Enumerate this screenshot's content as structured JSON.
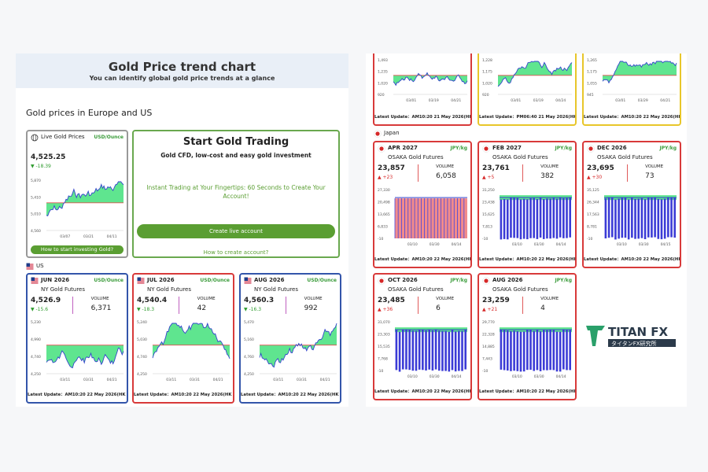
{
  "left": {
    "header": {
      "title": "Gold Price trend chart",
      "subtitle": "You can identify global gold price trends at a glance"
    },
    "section_title": "Gold prices in Europe and US",
    "live": {
      "title": "Live Gold Prices",
      "unit": "USD/Ounce",
      "price": "4,525.25",
      "change": "▼ -18.39",
      "yticks": [
        "5,870",
        "5,410",
        "5,010",
        "4,560"
      ],
      "xticks": [
        "03/07",
        "03/21",
        "04/11"
      ],
      "button": "How to start investing Gold?"
    },
    "promo": {
      "title": "Start Gold Trading",
      "subtitle": "Gold CFD, low-cost and easy gold investment",
      "text": "Instant Trading at Your Fingertips: 60 Seconds to Create Your Account!",
      "button": "Create live account",
      "link": "How to create account?"
    },
    "us_label": "US",
    "us_cards": [
      {
        "contract": "JUN 2026",
        "unit": "USD/Ounce",
        "name": "NY Gold Futures",
        "price": "4,526.9",
        "change": "▼ -15.6",
        "volume_label": "VOLUME",
        "volume": "6,371",
        "yticks": [
          "5,230",
          "4,990",
          "4,740",
          "4,250"
        ],
        "xticks": [
          "03/11",
          "03/31",
          "04/21"
        ],
        "update": "Latest Update：AM10:20 22 May 2026(HK Time)"
      },
      {
        "contract": "JUL 2026",
        "unit": "USD/Ounce",
        "name": "NY Gold Futures",
        "price": "4,540.4",
        "change": "▼ -18.3",
        "volume_label": "VOLUME",
        "volume": "42",
        "yticks": [
          "5,240",
          "5,030",
          "4,740",
          "4,250"
        ],
        "xticks": [
          "03/11",
          "03/31",
          "04/21"
        ],
        "update": "Latest Update：AM10:20 22 May 2026(HK Time)"
      },
      {
        "contract": "AUG 2026",
        "unit": "USD/Ounce",
        "name": "NY Gold Futures",
        "price": "4,560.3",
        "change": "▼ -16.3",
        "volume_label": "VOLUME",
        "volume": "992",
        "yticks": [
          "5,470",
          "5,160",
          "4,760",
          "4,250"
        ],
        "xticks": [
          "03/11",
          "03/31",
          "04/21"
        ],
        "update": "Latest Update：AM10:20 22 May 2026(HK Time)"
      }
    ]
  },
  "right": {
    "top_cards": [
      {
        "yticks": [
          "1,493",
          "1,235",
          "1,020",
          "920"
        ],
        "xticks": [
          "03/01",
          "03/19",
          "04/21"
        ],
        "update": "Latest Update：AM10:20 21 May 2026(HK Time)"
      },
      {
        "yticks": [
          "1,228",
          "1,175",
          "1,020",
          "920"
        ],
        "xticks": [
          "03/01",
          "03/19",
          "04/24"
        ],
        "update": "Latest Update：PM06:40 21 May 2026(HK Time)"
      },
      {
        "yticks": [
          "1,265",
          "1,175",
          "1,055",
          "945"
        ],
        "xticks": [
          "03/01",
          "03/29",
          "04/21"
        ],
        "update": "Latest Update：AM10:20 22 May 2026(HK Time)"
      }
    ],
    "japan_label": "Japan",
    "jp_cards": [
      {
        "contract": "APR 2027",
        "unit": "JPY/kg",
        "name": "OSAKA Gold Futures",
        "price": "23,857",
        "change": "▲ +23",
        "volume_label": "VOLUME",
        "volume": "6,058",
        "yticks": [
          "27,330",
          "20,498",
          "13,665",
          "6,833",
          "-10"
        ],
        "xticks": [
          "03/10",
          "03/30",
          "04/14"
        ],
        "update": "Latest Update：AM10:20 22 May 2026(HK Time)"
      },
      {
        "contract": "FEB 2027",
        "unit": "JPY/kg",
        "name": "OSAKA Gold Futures",
        "price": "23,761",
        "change": "▲ +5",
        "volume_label": "VOLUME",
        "volume": "382",
        "yticks": [
          "31,250",
          "23,438",
          "15,625",
          "7,813",
          "-10"
        ],
        "xticks": [
          "03/10",
          "03/30",
          "04/14"
        ],
        "update": "Latest Update：AM10:20 22 May 2026(HK Time)"
      },
      {
        "contract": "DEC 2026",
        "unit": "JPY/kg",
        "name": "OSAKA Gold Futures",
        "price": "23,695",
        "change": "▲ +30",
        "volume_label": "VOLUME",
        "volume": "73",
        "yticks": [
          "35,125",
          "26,344",
          "17,563",
          "8,781",
          "-10"
        ],
        "xticks": [
          "03/10",
          "03/30",
          "04/15"
        ],
        "update": "Latest Update：AM10:20 22 May 2026(HK Time)"
      },
      {
        "contract": "OCT 2026",
        "unit": "JPY/kg",
        "name": "OSAKA Gold Futures",
        "price": "23,485",
        "change": "▲ +36",
        "volume_label": "VOLUME",
        "volume": "6",
        "yticks": [
          "31,070",
          "23,303",
          "15,535",
          "7,768",
          "-10"
        ],
        "xticks": [
          "03/10",
          "03/30",
          "04/14"
        ],
        "update": "Latest Update：AM10:20 22 May 2026(HK Time)"
      },
      {
        "contract": "AUG 2026",
        "unit": "JPY/kg",
        "name": "OSAKA Gold Futures",
        "price": "23,259",
        "change": "▲ +21",
        "volume_label": "VOLUME",
        "volume": "4",
        "yticks": [
          "29,770",
          "22,328",
          "14,885",
          "7,443",
          "-10"
        ],
        "xticks": [
          "03/10",
          "03/30",
          "04/14"
        ],
        "update": "Latest Update：AM10:20 22 May 2026(HK Time)"
      }
    ],
    "logo": {
      "name": "TITAN FX",
      "sub": "タイタンFX研究所"
    }
  }
}
